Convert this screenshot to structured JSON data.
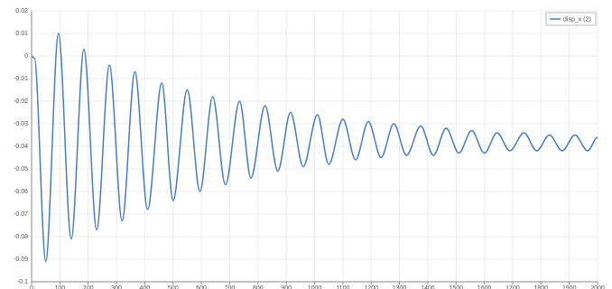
{
  "chart_data": {
    "type": "line",
    "x": [
      0,
      10,
      50,
      95,
      140,
      185,
      230,
      275,
      320,
      365,
      410,
      460,
      500,
      550,
      595,
      640,
      685,
      735,
      775,
      825,
      870,
      915,
      960,
      1010,
      1050,
      1100,
      1145,
      1190,
      1235,
      1280,
      1325,
      1375,
      1420,
      1465,
      1510,
      1555,
      1600,
      1645,
      1690,
      1740,
      1785,
      1830,
      1875,
      1920,
      1965,
      2000
    ],
    "series": [
      {
        "name": "disp_x (2)",
        "color": "#4a7ebb",
        "values": [
          0,
          -0.001,
          -0.091,
          0.01,
          -0.081,
          0.003,
          -0.077,
          -0.004,
          -0.073,
          -0.007,
          -0.068,
          -0.012,
          -0.064,
          -0.015,
          -0.06,
          -0.018,
          -0.057,
          -0.02,
          -0.054,
          -0.022,
          -0.051,
          -0.025,
          -0.049,
          -0.026,
          -0.048,
          -0.028,
          -0.046,
          -0.029,
          -0.045,
          -0.03,
          -0.044,
          -0.031,
          -0.044,
          -0.032,
          -0.043,
          -0.033,
          -0.043,
          -0.034,
          -0.042,
          -0.034,
          -0.042,
          -0.035,
          -0.042,
          -0.035,
          -0.042,
          -0.036
        ]
      }
    ],
    "xlim": [
      0,
      2000
    ],
    "xticks": [
      0,
      100,
      200,
      300,
      400,
      500,
      600,
      700,
      800,
      900,
      1000,
      1100,
      1200,
      1300,
      1400,
      1500,
      1600,
      1700,
      1800,
      1900,
      2000
    ],
    "ylim": [
      -0.1,
      0.02
    ],
    "yticks": [
      0.02,
      0.01,
      0,
      -0.01,
      -0.02,
      -0.03,
      -0.04,
      -0.05,
      -0.06,
      -0.07,
      -0.08,
      -0.09,
      -0.1
    ],
    "grid": true,
    "legend": "upper right"
  }
}
